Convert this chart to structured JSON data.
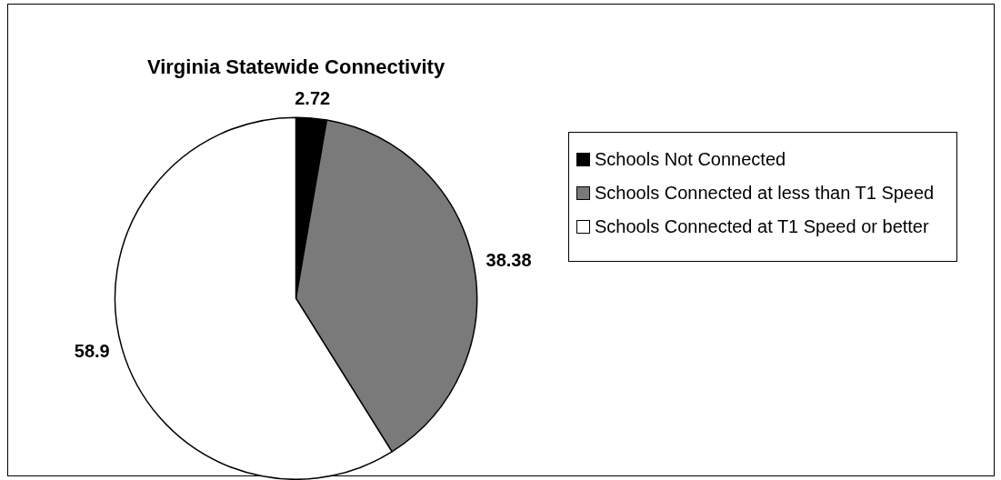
{
  "chart_data": {
    "type": "pie",
    "title": "Virginia Statewide Connectivity",
    "categories": [
      "Schools Not Connected",
      "Schools Connected at less than T1 Speed",
      "Schools Connected at T1 Speed or better"
    ],
    "values": [
      2.72,
      38.38,
      58.9
    ],
    "colors": [
      "#000000",
      "#7a7a7a",
      "#ffffff"
    ],
    "data_labels": true,
    "legend": "right"
  }
}
